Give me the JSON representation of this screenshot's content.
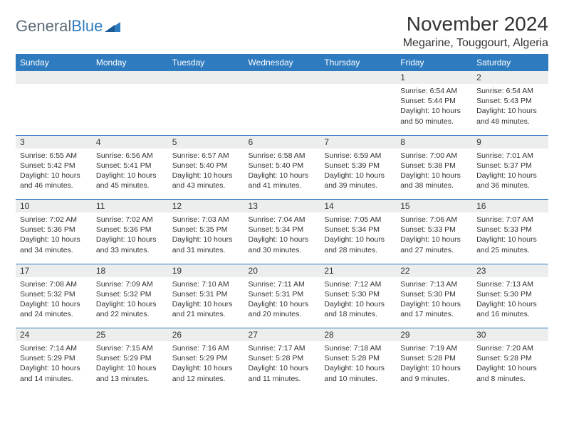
{
  "brand": {
    "part1": "General",
    "part2": "Blue"
  },
  "title": "November 2024",
  "location": "Megarine, Touggourt, Algeria",
  "colors": {
    "header_bg": "#2f7bbf",
    "header_text": "#ffffff",
    "daynum_bg": "#eceeee",
    "rule": "#2f7bbf",
    "text": "#333333",
    "logo_gray": "#5c6b78",
    "logo_blue": "#2f7bbf"
  },
  "weekdays": [
    "Sunday",
    "Monday",
    "Tuesday",
    "Wednesday",
    "Thursday",
    "Friday",
    "Saturday"
  ],
  "weeks": [
    [
      null,
      null,
      null,
      null,
      null,
      {
        "n": "1",
        "sunrise": "Sunrise: 6:54 AM",
        "sunset": "Sunset: 5:44 PM",
        "daylight": "Daylight: 10 hours and 50 minutes."
      },
      {
        "n": "2",
        "sunrise": "Sunrise: 6:54 AM",
        "sunset": "Sunset: 5:43 PM",
        "daylight": "Daylight: 10 hours and 48 minutes."
      }
    ],
    [
      {
        "n": "3",
        "sunrise": "Sunrise: 6:55 AM",
        "sunset": "Sunset: 5:42 PM",
        "daylight": "Daylight: 10 hours and 46 minutes."
      },
      {
        "n": "4",
        "sunrise": "Sunrise: 6:56 AM",
        "sunset": "Sunset: 5:41 PM",
        "daylight": "Daylight: 10 hours and 45 minutes."
      },
      {
        "n": "5",
        "sunrise": "Sunrise: 6:57 AM",
        "sunset": "Sunset: 5:40 PM",
        "daylight": "Daylight: 10 hours and 43 minutes."
      },
      {
        "n": "6",
        "sunrise": "Sunrise: 6:58 AM",
        "sunset": "Sunset: 5:40 PM",
        "daylight": "Daylight: 10 hours and 41 minutes."
      },
      {
        "n": "7",
        "sunrise": "Sunrise: 6:59 AM",
        "sunset": "Sunset: 5:39 PM",
        "daylight": "Daylight: 10 hours and 39 minutes."
      },
      {
        "n": "8",
        "sunrise": "Sunrise: 7:00 AM",
        "sunset": "Sunset: 5:38 PM",
        "daylight": "Daylight: 10 hours and 38 minutes."
      },
      {
        "n": "9",
        "sunrise": "Sunrise: 7:01 AM",
        "sunset": "Sunset: 5:37 PM",
        "daylight": "Daylight: 10 hours and 36 minutes."
      }
    ],
    [
      {
        "n": "10",
        "sunrise": "Sunrise: 7:02 AM",
        "sunset": "Sunset: 5:36 PM",
        "daylight": "Daylight: 10 hours and 34 minutes."
      },
      {
        "n": "11",
        "sunrise": "Sunrise: 7:02 AM",
        "sunset": "Sunset: 5:36 PM",
        "daylight": "Daylight: 10 hours and 33 minutes."
      },
      {
        "n": "12",
        "sunrise": "Sunrise: 7:03 AM",
        "sunset": "Sunset: 5:35 PM",
        "daylight": "Daylight: 10 hours and 31 minutes."
      },
      {
        "n": "13",
        "sunrise": "Sunrise: 7:04 AM",
        "sunset": "Sunset: 5:34 PM",
        "daylight": "Daylight: 10 hours and 30 minutes."
      },
      {
        "n": "14",
        "sunrise": "Sunrise: 7:05 AM",
        "sunset": "Sunset: 5:34 PM",
        "daylight": "Daylight: 10 hours and 28 minutes."
      },
      {
        "n": "15",
        "sunrise": "Sunrise: 7:06 AM",
        "sunset": "Sunset: 5:33 PM",
        "daylight": "Daylight: 10 hours and 27 minutes."
      },
      {
        "n": "16",
        "sunrise": "Sunrise: 7:07 AM",
        "sunset": "Sunset: 5:33 PM",
        "daylight": "Daylight: 10 hours and 25 minutes."
      }
    ],
    [
      {
        "n": "17",
        "sunrise": "Sunrise: 7:08 AM",
        "sunset": "Sunset: 5:32 PM",
        "daylight": "Daylight: 10 hours and 24 minutes."
      },
      {
        "n": "18",
        "sunrise": "Sunrise: 7:09 AM",
        "sunset": "Sunset: 5:32 PM",
        "daylight": "Daylight: 10 hours and 22 minutes."
      },
      {
        "n": "19",
        "sunrise": "Sunrise: 7:10 AM",
        "sunset": "Sunset: 5:31 PM",
        "daylight": "Daylight: 10 hours and 21 minutes."
      },
      {
        "n": "20",
        "sunrise": "Sunrise: 7:11 AM",
        "sunset": "Sunset: 5:31 PM",
        "daylight": "Daylight: 10 hours and 20 minutes."
      },
      {
        "n": "21",
        "sunrise": "Sunrise: 7:12 AM",
        "sunset": "Sunset: 5:30 PM",
        "daylight": "Daylight: 10 hours and 18 minutes."
      },
      {
        "n": "22",
        "sunrise": "Sunrise: 7:13 AM",
        "sunset": "Sunset: 5:30 PM",
        "daylight": "Daylight: 10 hours and 17 minutes."
      },
      {
        "n": "23",
        "sunrise": "Sunrise: 7:13 AM",
        "sunset": "Sunset: 5:30 PM",
        "daylight": "Daylight: 10 hours and 16 minutes."
      }
    ],
    [
      {
        "n": "24",
        "sunrise": "Sunrise: 7:14 AM",
        "sunset": "Sunset: 5:29 PM",
        "daylight": "Daylight: 10 hours and 14 minutes."
      },
      {
        "n": "25",
        "sunrise": "Sunrise: 7:15 AM",
        "sunset": "Sunset: 5:29 PM",
        "daylight": "Daylight: 10 hours and 13 minutes."
      },
      {
        "n": "26",
        "sunrise": "Sunrise: 7:16 AM",
        "sunset": "Sunset: 5:29 PM",
        "daylight": "Daylight: 10 hours and 12 minutes."
      },
      {
        "n": "27",
        "sunrise": "Sunrise: 7:17 AM",
        "sunset": "Sunset: 5:28 PM",
        "daylight": "Daylight: 10 hours and 11 minutes."
      },
      {
        "n": "28",
        "sunrise": "Sunrise: 7:18 AM",
        "sunset": "Sunset: 5:28 PM",
        "daylight": "Daylight: 10 hours and 10 minutes."
      },
      {
        "n": "29",
        "sunrise": "Sunrise: 7:19 AM",
        "sunset": "Sunset: 5:28 PM",
        "daylight": "Daylight: 10 hours and 9 minutes."
      },
      {
        "n": "30",
        "sunrise": "Sunrise: 7:20 AM",
        "sunset": "Sunset: 5:28 PM",
        "daylight": "Daylight: 10 hours and 8 minutes."
      }
    ]
  ]
}
